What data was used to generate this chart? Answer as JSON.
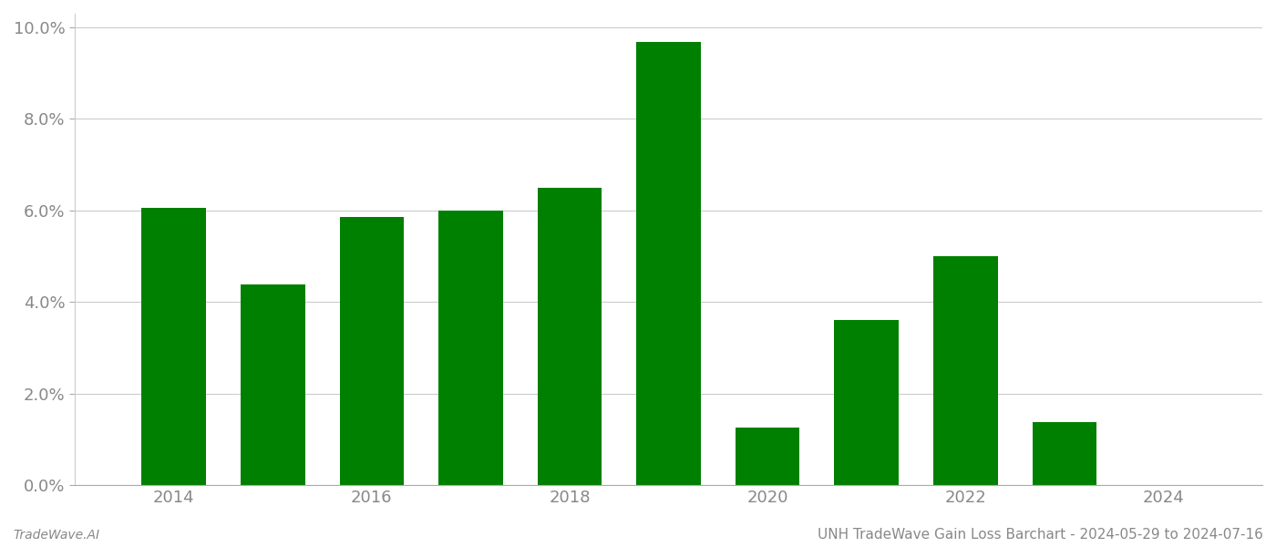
{
  "years": [
    2014,
    2015,
    2016,
    2017,
    2018,
    2019,
    2020,
    2021,
    2022,
    2023
  ],
  "values": [
    0.0605,
    0.0438,
    0.0585,
    0.06,
    0.065,
    0.0968,
    0.0125,
    0.036,
    0.05,
    0.0138
  ],
  "bar_color": "#008000",
  "background_color": "#ffffff",
  "xlim": [
    2013.0,
    2025.0
  ],
  "ylim": [
    0,
    0.103
  ],
  "yticks": [
    0.0,
    0.02,
    0.04,
    0.06,
    0.08,
    0.1
  ],
  "xticks": [
    2014,
    2016,
    2018,
    2020,
    2022,
    2024
  ],
  "grid_color": "#cccccc",
  "title": "UNH TradeWave Gain Loss Barchart - 2024-05-29 to 2024-07-16",
  "footer_left": "TradeWave.AI",
  "title_fontsize": 11,
  "footer_fontsize": 10,
  "tick_fontsize": 13,
  "bar_width": 0.65
}
